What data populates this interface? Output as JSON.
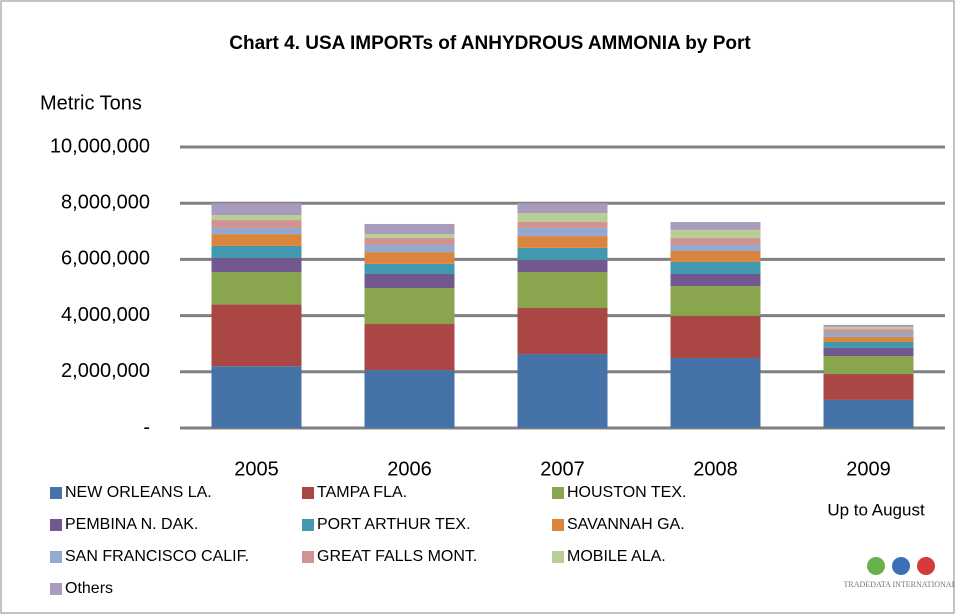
{
  "chart_data": {
    "type": "stacked_bar",
    "title": "Chart 4. USA IMPORTs of ANHYDROUS AMMONIA by Port",
    "y_label": "Metric Tons",
    "annotation": "Up to August",
    "logo": "TRADEDATA INTERNATIONAL",
    "categories": [
      "2005",
      "2006",
      "2007",
      "2008",
      "2009"
    ],
    "ylim": [
      0,
      10000000
    ],
    "yticks": [
      {
        "value": 0,
        "label": "-"
      },
      {
        "value": 2000000,
        "label": "2,000,000"
      },
      {
        "value": 4000000,
        "label": "4,000,000"
      },
      {
        "value": 6000000,
        "label": "6,000,000"
      },
      {
        "value": 8000000,
        "label": "8,000,000"
      },
      {
        "value": 10000000,
        "label": "10,000,000"
      }
    ],
    "grid": true,
    "series": [
      {
        "name": "NEW ORLEANS LA.",
        "color": "#4572a7",
        "values": [
          2200000,
          2060000,
          2630000,
          2490000,
          1000000
        ]
      },
      {
        "name": "TAMPA FLA.",
        "color": "#aa4643",
        "values": [
          2200000,
          1640000,
          1640000,
          1500000,
          920000
        ]
      },
      {
        "name": "HOUSTON TEX.",
        "color": "#89a54e",
        "values": [
          1150000,
          1280000,
          1280000,
          1060000,
          640000
        ]
      },
      {
        "name": "PEMBINA N. DAK.",
        "color": "#71588f",
        "values": [
          500000,
          500000,
          430000,
          430000,
          290000
        ]
      },
      {
        "name": "PORT ARTHUR TEX.",
        "color": "#4198af",
        "values": [
          430000,
          360000,
          430000,
          430000,
          210000
        ]
      },
      {
        "name": "SAVANNAH GA.",
        "color": "#db843d",
        "values": [
          420000,
          420000,
          420000,
          390000,
          180000
        ]
      },
      {
        "name": "SAN FRANCISCO CALIF.",
        "color": "#93a9cf",
        "values": [
          220000,
          250000,
          290000,
          210000,
          140000
        ]
      },
      {
        "name": "GREAT FALLS MONT.",
        "color": "#d19392",
        "values": [
          280000,
          250000,
          210000,
          250000,
          140000
        ]
      },
      {
        "name": "MOBILE ALA.",
        "color": "#b9cd96",
        "values": [
          180000,
          140000,
          320000,
          290000,
          70000
        ]
      },
      {
        "name": "Others",
        "color": "#a99bbd",
        "values": [
          420000,
          360000,
          350000,
          280000,
          80000
        ]
      }
    ]
  }
}
